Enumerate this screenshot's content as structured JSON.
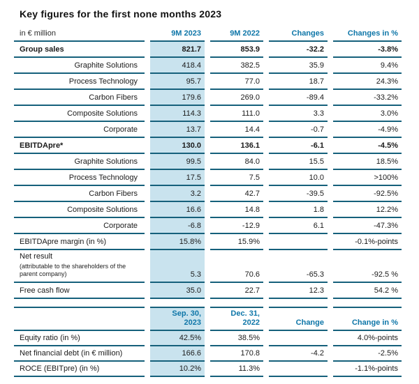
{
  "title": "Key figures for the first none months 2023",
  "colors": {
    "accent_blue": "#0e76a8",
    "rule_teal": "#15607b",
    "highlight_blue": "#c9e3ee"
  },
  "table1": {
    "unit_label": "in € million",
    "headers": [
      "9M 2023",
      "9M 2022",
      "Changes",
      "Changes in %"
    ],
    "rows": [
      {
        "label": "Group sales",
        "style": "bold",
        "values": [
          "821.7",
          "853.9",
          "-32.2",
          "-3.8%"
        ]
      },
      {
        "label": "Graphite Solutions",
        "style": "sub",
        "values": [
          "418.4",
          "382.5",
          "35.9",
          "9.4%"
        ]
      },
      {
        "label": "Process Technology",
        "style": "sub",
        "values": [
          "95.7",
          "77.0",
          "18.7",
          "24.3%"
        ]
      },
      {
        "label": "Carbon Fibers",
        "style": "sub",
        "values": [
          "179.6",
          "269.0",
          "-89.4",
          "-33.2%"
        ]
      },
      {
        "label": "Composite Solutions",
        "style": "sub",
        "values": [
          "114.3",
          "111.0",
          "3.3",
          "3.0%"
        ]
      },
      {
        "label": "Corporate",
        "style": "sub",
        "values": [
          "13.7",
          "14.4",
          "-0.7",
          "-4.9%"
        ]
      },
      {
        "label": "EBITDApre*",
        "style": "bold",
        "values": [
          "130.0",
          "136.1",
          "-6.1",
          "-4.5%"
        ]
      },
      {
        "label": "Graphite Solutions",
        "style": "sub",
        "values": [
          "99.5",
          "84.0",
          "15.5",
          "18.5%"
        ]
      },
      {
        "label": "Process Technology",
        "style": "sub",
        "values": [
          "17.5",
          "7.5",
          "10.0",
          ">100%"
        ]
      },
      {
        "label": "Carbon Fibers",
        "style": "sub",
        "values": [
          "3.2",
          "42.7",
          "-39.5",
          "-92.5%"
        ]
      },
      {
        "label": "Composite Solutions",
        "style": "sub",
        "values": [
          "16.6",
          "14.8",
          "1.8",
          "12.2%"
        ]
      },
      {
        "label": "Corporate",
        "style": "sub",
        "values": [
          "-6.8",
          "-12.9",
          "6.1",
          "-47.3%"
        ]
      },
      {
        "label": "EBITDApre margin (in %)",
        "style": "plain",
        "values": [
          "15.8%",
          "15.9%",
          "",
          "-0.1%-points"
        ]
      },
      {
        "label": "Net result",
        "sublabel": "(attributable to the shareholders of the parent company)",
        "style": "multi",
        "values": [
          "5.3",
          "70.6",
          "-65.3",
          "-92.5 %"
        ]
      },
      {
        "label": "Free cash flow",
        "style": "plain",
        "values": [
          "35.0",
          "22.7",
          "12.3",
          "54.2 %"
        ]
      }
    ]
  },
  "table2": {
    "unit_label": "",
    "headers": [
      "Sep. 30,\n2023",
      "Dec. 31,\n2022",
      "Change",
      "Change in %"
    ],
    "rows": [
      {
        "label": "Equity ratio (in %)",
        "style": "plain",
        "values": [
          "42.5%",
          "38.5%",
          "",
          "4.0%-points"
        ]
      },
      {
        "label": "Net financial debt (in € million)",
        "style": "plain",
        "values": [
          "166.6",
          "170.8",
          "-4.2",
          "-2.5%"
        ]
      },
      {
        "label": "ROCE (EBITpre) (in %)",
        "style": "plain",
        "values": [
          "10.2%",
          "11.3%",
          "",
          "-1.1%-points"
        ]
      }
    ]
  }
}
